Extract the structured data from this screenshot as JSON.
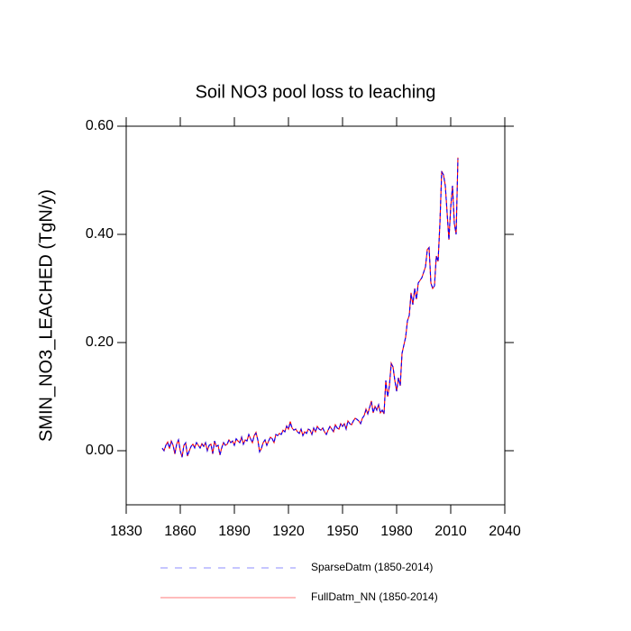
{
  "chart_data": {
    "type": "line",
    "title": "Soil NO3 pool loss to leaching",
    "ylabel": "SMIN_NO3_LEACHED  (TgN/y)",
    "xlim": [
      1830,
      2040
    ],
    "xticks": [
      1830,
      1860,
      1890,
      1920,
      1950,
      1980,
      2010,
      2040
    ],
    "ylim": [
      -0.1,
      0.6
    ],
    "yticks": [
      {
        "value": 0,
        "label": "0.00"
      },
      {
        "value": 0.2,
        "label": "0.20"
      },
      {
        "value": 0.4,
        "label": "0.40"
      },
      {
        "value": 0.6,
        "label": "0.60"
      }
    ],
    "x": [
      1850,
      1851,
      1852,
      1853,
      1854,
      1855,
      1856,
      1857,
      1858,
      1859,
      1860,
      1861,
      1862,
      1863,
      1864,
      1865,
      1866,
      1867,
      1868,
      1869,
      1870,
      1871,
      1872,
      1873,
      1874,
      1875,
      1876,
      1877,
      1878,
      1879,
      1880,
      1881,
      1882,
      1883,
      1884,
      1885,
      1886,
      1887,
      1888,
      1889,
      1890,
      1891,
      1892,
      1893,
      1894,
      1895,
      1896,
      1897,
      1898,
      1899,
      1900,
      1901,
      1902,
      1903,
      1904,
      1905,
      1906,
      1907,
      1908,
      1909,
      1910,
      1911,
      1912,
      1913,
      1914,
      1915,
      1916,
      1917,
      1918,
      1919,
      1920,
      1921,
      1922,
      1923,
      1924,
      1925,
      1926,
      1927,
      1928,
      1929,
      1930,
      1931,
      1932,
      1933,
      1934,
      1935,
      1936,
      1937,
      1938,
      1939,
      1940,
      1941,
      1942,
      1943,
      1944,
      1945,
      1946,
      1947,
      1948,
      1949,
      1950,
      1951,
      1952,
      1953,
      1954,
      1955,
      1956,
      1957,
      1958,
      1959,
      1960,
      1961,
      1962,
      1963,
      1964,
      1965,
      1966,
      1967,
      1968,
      1969,
      1970,
      1971,
      1972,
      1973,
      1974,
      1975,
      1976,
      1977,
      1978,
      1979,
      1980,
      1981,
      1982,
      1983,
      1984,
      1985,
      1986,
      1987,
      1988,
      1989,
      1990,
      1991,
      1992,
      1993,
      1994,
      1995,
      1996,
      1997,
      1998,
      1999,
      2000,
      2001,
      2002,
      2003,
      2004,
      2005,
      2006,
      2007,
      2008,
      2009,
      2010,
      2011,
      2012,
      2013,
      2014
    ],
    "series": [
      {
        "name": "FullDatm_NN (1850-2014)",
        "color": "#ff0000",
        "dash": false,
        "values": [
          0.004,
          0.0,
          0.01,
          0.016,
          0.004,
          0.018,
          0.01,
          -0.006,
          0.012,
          0.02,
          0.0,
          -0.012,
          0.01,
          0.014,
          -0.01,
          0.0,
          0.008,
          0.012,
          0.006,
          0.015,
          0.01,
          0.005,
          0.013,
          0.008,
          0.015,
          0.0,
          0.01,
          0.012,
          -0.006,
          0.018,
          0.008,
          0.01,
          -0.008,
          0.006,
          0.015,
          0.01,
          0.012,
          0.02,
          0.015,
          0.018,
          0.01,
          0.022,
          0.018,
          0.015,
          0.025,
          0.012,
          0.02,
          0.018,
          0.03,
          0.022,
          0.015,
          0.028,
          0.034,
          0.02,
          -0.002,
          0.004,
          0.015,
          0.02,
          0.01,
          0.018,
          0.025,
          0.022,
          0.015,
          0.03,
          0.028,
          0.032,
          0.03,
          0.038,
          0.035,
          0.046,
          0.04,
          0.054,
          0.042,
          0.038,
          0.04,
          0.035,
          0.032,
          0.04,
          0.028,
          0.035,
          0.032,
          0.04,
          0.038,
          0.03,
          0.042,
          0.035,
          0.045,
          0.04,
          0.038,
          0.042,
          0.035,
          0.03,
          0.038,
          0.045,
          0.04,
          0.035,
          0.048,
          0.042,
          0.04,
          0.05,
          0.045,
          0.05,
          0.04,
          0.055,
          0.05,
          0.048,
          0.055,
          0.06,
          0.058,
          0.055,
          0.05,
          0.06,
          0.065,
          0.077,
          0.068,
          0.08,
          0.092,
          0.07,
          0.082,
          0.075,
          0.085,
          0.07,
          0.075,
          0.068,
          0.13,
          0.1,
          0.12,
          0.162,
          0.155,
          0.13,
          0.11,
          0.135,
          0.12,
          0.18,
          0.195,
          0.21,
          0.24,
          0.25,
          0.292,
          0.27,
          0.3,
          0.28,
          0.31,
          0.315,
          0.32,
          0.33,
          0.34,
          0.372,
          0.376,
          0.31,
          0.3,
          0.305,
          0.36,
          0.35,
          0.42,
          0.517,
          0.51,
          0.49,
          0.44,
          0.39,
          0.45,
          0.49,
          0.42,
          0.4,
          0.542
        ]
      },
      {
        "name": "SparseDatm (1850-2014)",
        "color": "#0000ff",
        "dash": true,
        "values": [
          0.005,
          0.0,
          0.01,
          0.015,
          0.005,
          0.018,
          0.01,
          -0.005,
          0.012,
          0.02,
          0.0,
          -0.012,
          0.01,
          0.015,
          -0.01,
          0.0,
          0.008,
          0.012,
          0.005,
          0.015,
          0.01,
          0.005,
          0.012,
          0.008,
          0.015,
          0.0,
          0.01,
          0.012,
          -0.005,
          0.018,
          0.008,
          0.01,
          -0.008,
          0.005,
          0.015,
          0.01,
          0.012,
          0.02,
          0.015,
          0.018,
          0.01,
          0.022,
          0.018,
          0.015,
          0.025,
          0.012,
          0.02,
          0.018,
          0.03,
          0.022,
          0.015,
          0.028,
          0.032,
          0.02,
          -0.002,
          0.005,
          0.015,
          0.02,
          0.01,
          0.018,
          0.025,
          0.022,
          0.015,
          0.03,
          0.028,
          0.032,
          0.03,
          0.038,
          0.035,
          0.045,
          0.04,
          0.052,
          0.042,
          0.038,
          0.04,
          0.035,
          0.032,
          0.04,
          0.028,
          0.035,
          0.032,
          0.04,
          0.038,
          0.03,
          0.042,
          0.035,
          0.045,
          0.04,
          0.038,
          0.042,
          0.035,
          0.03,
          0.038,
          0.045,
          0.04,
          0.035,
          0.048,
          0.042,
          0.04,
          0.05,
          0.045,
          0.05,
          0.04,
          0.055,
          0.05,
          0.048,
          0.055,
          0.06,
          0.058,
          0.055,
          0.05,
          0.06,
          0.065,
          0.075,
          0.068,
          0.08,
          0.09,
          0.07,
          0.082,
          0.075,
          0.085,
          0.07,
          0.075,
          0.068,
          0.13,
          0.1,
          0.12,
          0.16,
          0.155,
          0.13,
          0.11,
          0.135,
          0.12,
          0.18,
          0.195,
          0.21,
          0.24,
          0.25,
          0.29,
          0.27,
          0.3,
          0.28,
          0.31,
          0.315,
          0.32,
          0.33,
          0.34,
          0.37,
          0.375,
          0.31,
          0.3,
          0.305,
          0.36,
          0.35,
          0.42,
          0.515,
          0.51,
          0.49,
          0.44,
          0.39,
          0.45,
          0.49,
          0.42,
          0.4,
          0.54
        ]
      }
    ]
  }
}
